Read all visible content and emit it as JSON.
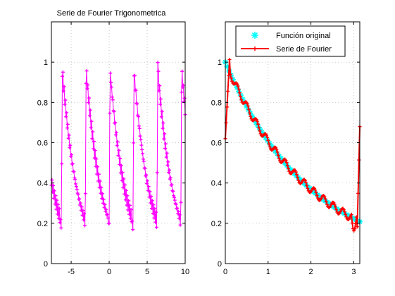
{
  "colors": {
    "left_series": "#ff00ff",
    "original": "#00ffff",
    "fourier": "#ff0000",
    "grid": "#b0b0b0"
  },
  "chart_data": [
    {
      "type": "line",
      "title": "Serie de Fourier Trigonometrica",
      "xlim": [
        -7.6,
        10
      ],
      "ylim": [
        0,
        1.2
      ],
      "xticks": [
        -5,
        0,
        5,
        10
      ],
      "yticks": [
        0,
        0.2,
        0.4,
        0.6,
        0.8,
        1
      ],
      "grid": true,
      "marker": "plus",
      "series": [
        {
          "color": "#ff00ff",
          "period": 3.1416,
          "function": "exp(-0.5*(x mod pi)) with fourier ripple",
          "x": [
            -7.6,
            -7.0,
            -6.3,
            -6.29,
            -5.5,
            -4.7,
            -3.15,
            -3.14,
            -2.3,
            -1.5,
            -0.01,
            0.0,
            0.8,
            1.6,
            3.14,
            3.15,
            4.0,
            4.8,
            6.28,
            6.29,
            7.1,
            7.9,
            9.42,
            9.43,
            10.0
          ],
          "y": [
            0.47,
            0.33,
            0.2,
            1.02,
            0.67,
            0.45,
            0.2,
            1.02,
            0.6,
            0.45,
            0.2,
            1.02,
            0.67,
            0.45,
            0.2,
            1.02,
            0.67,
            0.45,
            0.2,
            1.02,
            0.67,
            0.45,
            0.2,
            1.02,
            0.72
          ]
        }
      ]
    },
    {
      "type": "line",
      "title": "",
      "xlim": [
        0,
        3.1416
      ],
      "ylim": [
        0,
        1.2
      ],
      "xticks": [
        0,
        1,
        2,
        3
      ],
      "yticks": [
        0,
        0.2,
        0.4,
        0.6,
        0.8,
        1
      ],
      "grid": true,
      "legend_position": "top-right",
      "series": [
        {
          "name": "Función original",
          "color": "#00ffff",
          "marker": "star",
          "x": [
            0,
            0.5,
            1.0,
            1.5,
            2.0,
            2.5,
            3.1416
          ],
          "y": [
            1.0,
            0.78,
            0.61,
            0.47,
            0.37,
            0.29,
            0.21
          ]
        },
        {
          "name": "Serie de Fourier",
          "color": "#ff0000",
          "marker": "plus",
          "x": [
            0,
            0.05,
            0.1,
            0.3,
            0.5,
            1.0,
            1.5,
            2.0,
            2.5,
            2.9,
            3.0,
            3.05,
            3.1416
          ],
          "y": [
            0.62,
            0.93,
            1.02,
            0.88,
            0.78,
            0.6,
            0.47,
            0.37,
            0.28,
            0.22,
            0.16,
            0.25,
            0.68
          ]
        }
      ]
    }
  ]
}
